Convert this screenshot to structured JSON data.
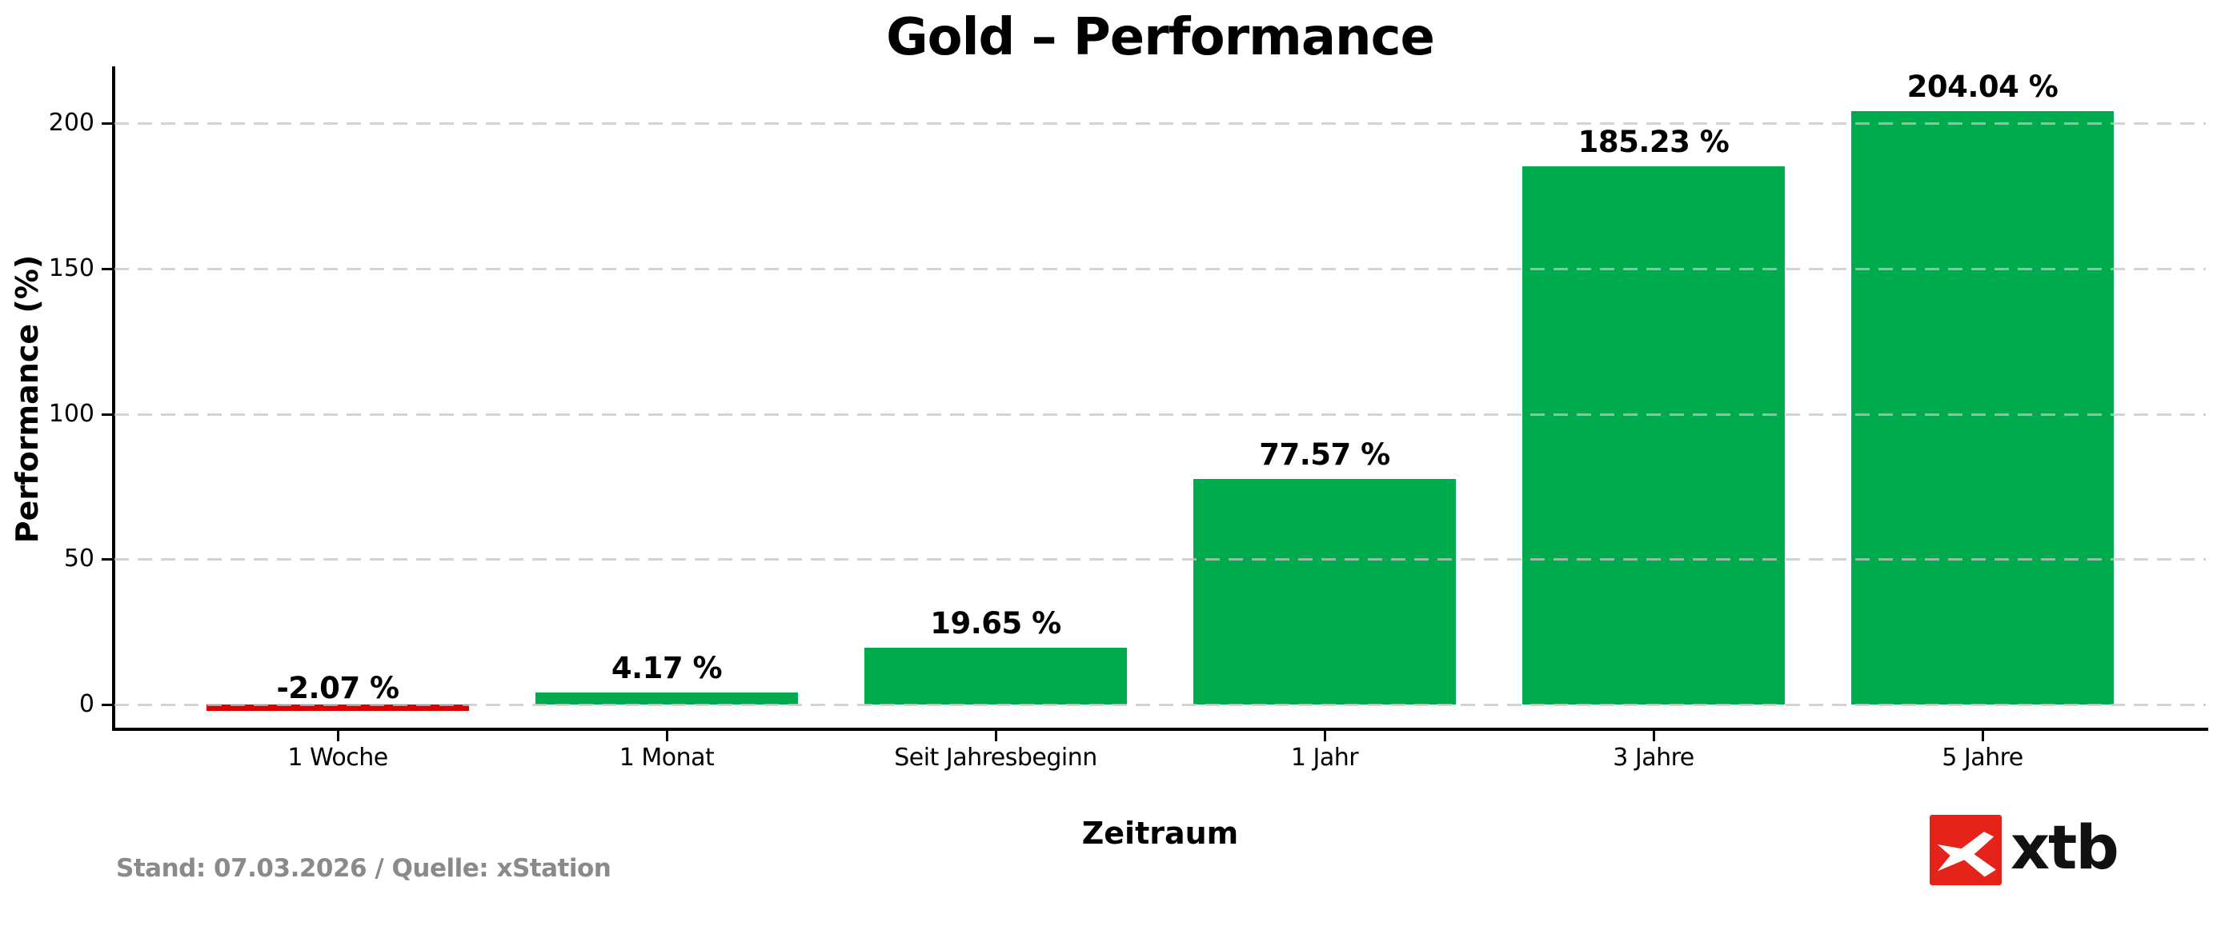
{
  "title": "Gold – Performance",
  "axis": {
    "xlabel": "Zeitraum",
    "ylabel": "Performance (%)"
  },
  "footer": {
    "source_note": "Stand: 07.03.2026 / Quelle: xStation"
  },
  "branding": {
    "logo_text": "xtb",
    "logo_bg_color": "#e5231b",
    "logo_glyph_color": "#ffffff",
    "logo_text_color": "#111111"
  },
  "chart_data": {
    "type": "bar",
    "title": "Gold – Performance",
    "xlabel": "Zeitraum",
    "ylabel": "Performance (%)",
    "categories": [
      "1 Woche",
      "1 Monat",
      "Seit Jahresbeginn",
      "1 Jahr",
      "3 Jahre",
      "5 Jahre"
    ],
    "values": [
      -2.07,
      4.17,
      19.65,
      77.57,
      185.23,
      204.04
    ],
    "value_labels": [
      "-2.07 %",
      "4.17 %",
      "19.65 %",
      "77.57 %",
      "185.23 %",
      "204.04 %"
    ],
    "yticks": [
      0,
      50,
      100,
      150,
      200
    ],
    "ylim": [
      -10,
      219
    ],
    "grid": {
      "axis": "y",
      "style": "dashed",
      "color": "#c4c4c4"
    },
    "legend": "none",
    "bar_colors": {
      "positive": "#00ab4e",
      "negative": "#dd0000"
    }
  }
}
